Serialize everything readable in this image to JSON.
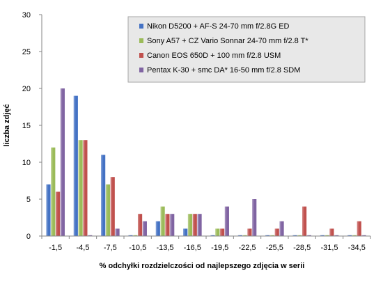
{
  "chart_data": {
    "type": "bar",
    "categories": [
      "-1,5",
      "-4,5",
      "-7,5",
      "-10,5",
      "-13,5",
      "-16,5",
      "-19,5",
      "-22,5",
      "-25,5",
      "-28,5",
      "-31,5",
      "-34,5"
    ],
    "series": [
      {
        "name": "Nikon D5200 + AF-S 24-70 mm f/2.8G ED",
        "color": "#4472C4",
        "values": [
          7,
          19,
          11,
          0,
          2,
          1,
          0,
          0,
          0,
          0,
          0,
          0
        ]
      },
      {
        "name": "Sony A57 + CZ Vario Sonnar 24-70 mm f/2.8 T*",
        "color": "#9BBB59",
        "values": [
          12,
          13,
          7,
          0,
          4,
          3,
          1,
          0,
          0,
          0,
          0,
          0
        ]
      },
      {
        "name": "Canon EOS 650D + 100 mm f/2.8 USM",
        "color": "#C0504D",
        "values": [
          6,
          13,
          8,
          3,
          3,
          3,
          1,
          1,
          1,
          4,
          1,
          2
        ]
      },
      {
        "name": "Pentax K-30 + smc DA* 16-50 mm f/2.8 SDM",
        "color": "#8064A2",
        "values": [
          20,
          0,
          1,
          2,
          3,
          3,
          4,
          5,
          2,
          0,
          0,
          0
        ]
      }
    ],
    "xlabel": "% odchyłki rozdzielczości od najlepszego zdjęcia w serii",
    "ylabel": "liczba zdjęć",
    "ylim": [
      0,
      30
    ],
    "yticks": [
      0,
      5,
      10,
      15,
      20,
      25,
      30
    ],
    "grid": false,
    "legend_position": "top-right"
  }
}
